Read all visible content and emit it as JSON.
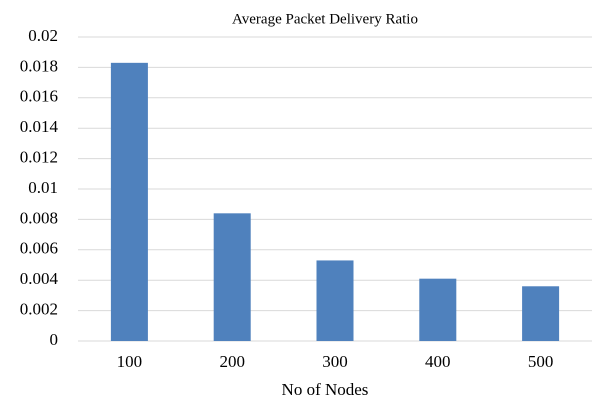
{
  "chart_data": {
    "type": "bar",
    "title": "Average Packet Delivery Ratio",
    "x_label": "No of Nodes",
    "categories": [
      "100",
      "200",
      "300",
      "400",
      "500"
    ],
    "values": [
      0.0183,
      0.0084,
      0.0053,
      0.0041,
      0.0036
    ],
    "color": "#4f81bd",
    "ylim": [
      0,
      0.02
    ],
    "yticks": [
      0,
      0.002,
      0.004,
      0.006,
      0.008,
      0.01,
      0.012,
      0.014,
      0.016,
      0.018,
      0.02
    ],
    "grid": true
  }
}
